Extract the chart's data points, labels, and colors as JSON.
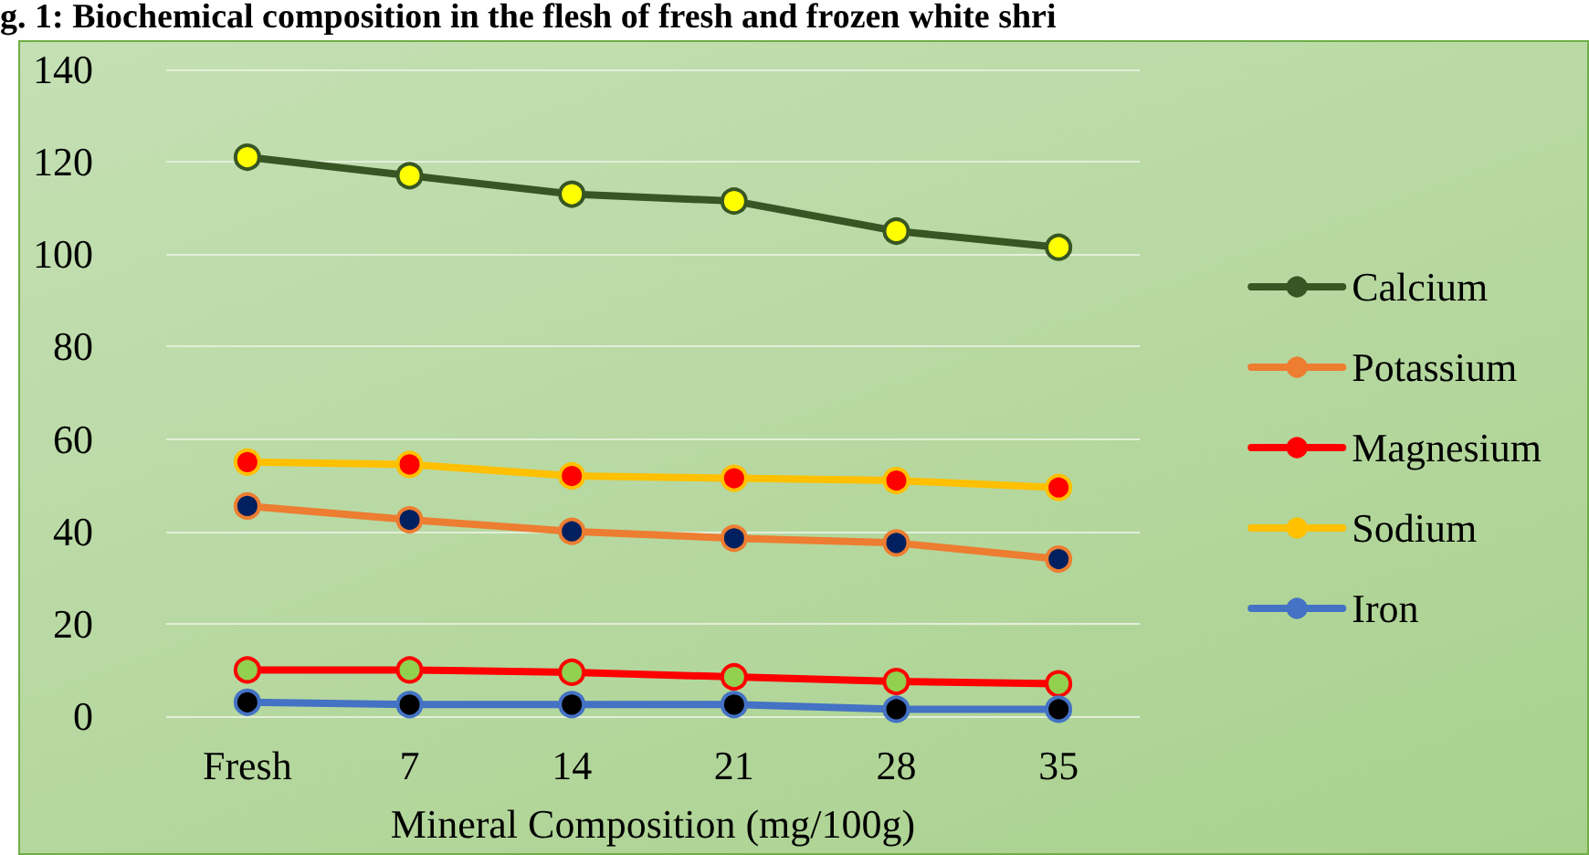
{
  "chart_data": {
    "type": "line",
    "title": "g. 1: Biochemical composition in the flesh of fresh and frozen white shri",
    "xlabel": "Mineral Composition (mg/100g)",
    "categories": [
      "Fresh",
      "7",
      "14",
      "21",
      "28",
      "35"
    ],
    "series": [
      {
        "name": "Calcium",
        "color": "#375623",
        "values": [
          121,
          117,
          113,
          111.5,
          105,
          101.5
        ]
      },
      {
        "name": "Potassium",
        "color": "#ed7d31",
        "values": [
          45.5,
          42.5,
          40,
          38.5,
          37.5,
          34
        ]
      },
      {
        "name": "Magnesium",
        "color": "#ff0000",
        "values": [
          10,
          10,
          9.5,
          8.5,
          7.5,
          7
        ]
      },
      {
        "name": "Sodium",
        "color": "#ffc000",
        "values": [
          55,
          54.5,
          52,
          51.5,
          51,
          49.5
        ]
      },
      {
        "name": "Iron",
        "color": "#4472c4",
        "values": [
          3,
          2.5,
          2.5,
          2.5,
          1.5,
          1.5
        ]
      }
    ],
    "ylim": [
      0,
      140
    ],
    "yticks": [
      0,
      20,
      40,
      60,
      80,
      100,
      120,
      140
    ],
    "grid": "y",
    "legend": "right",
    "marker": "circle",
    "line_style": "solid"
  }
}
